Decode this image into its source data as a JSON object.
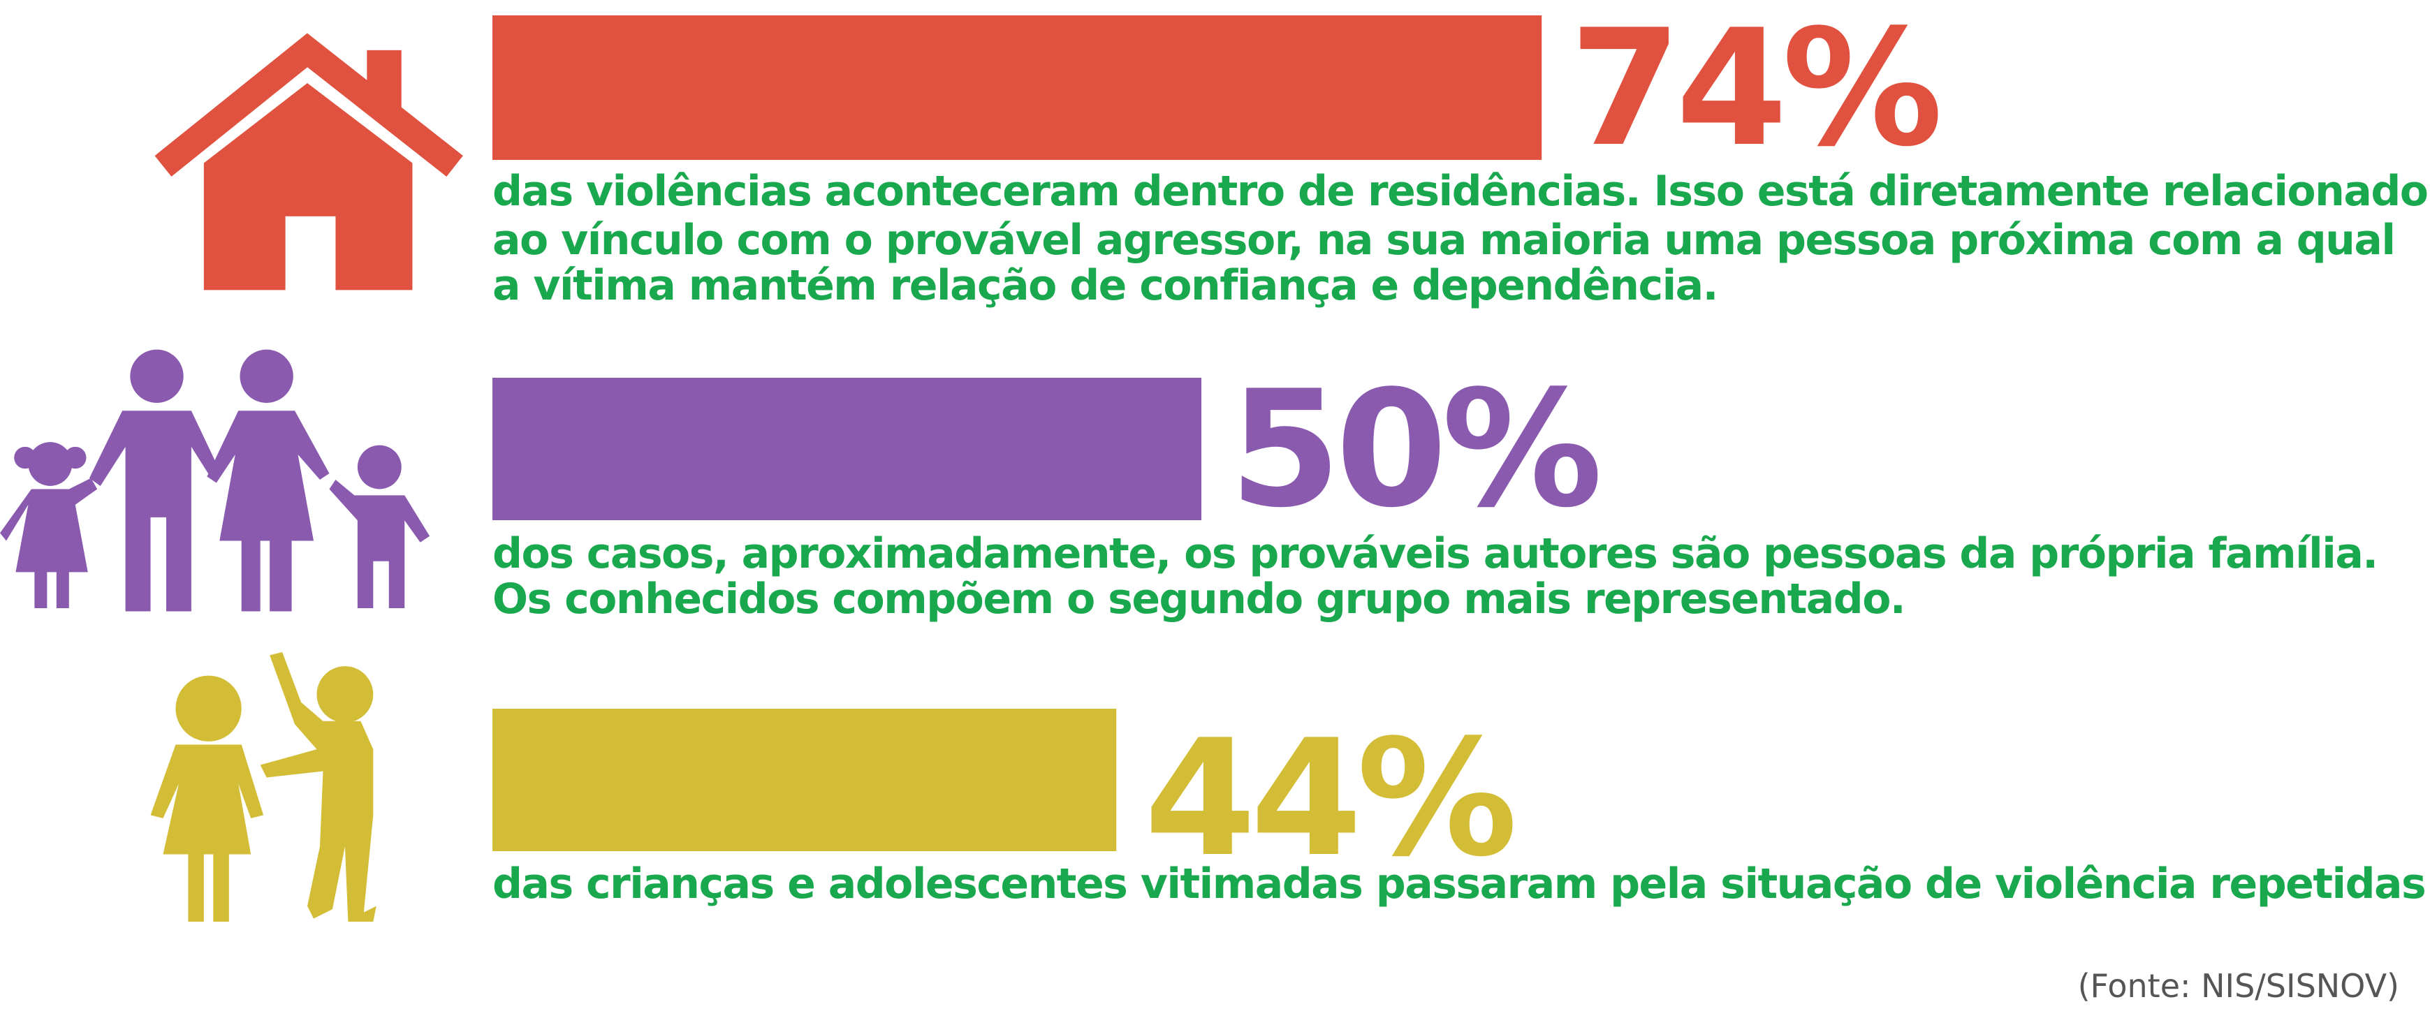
{
  "chart_data": {
    "type": "bar",
    "orientation": "horizontal",
    "values": [
      74,
      50,
      44
    ],
    "value_labels": [
      "74%",
      "50%",
      "44%"
    ],
    "colors": [
      "#e0523f",
      "#8a5aaf",
      "#d3bd37"
    ],
    "descriptions": [
      [
        "das violências aconteceram dentro de residências. Isso está diretamente relacionado",
        "ao vínculo com o provável agressor, na sua maioria uma pessoa próxima com a qual",
        "a vítima mantém relação de confiança e dependência."
      ],
      [
        "dos casos, aproximadamente, os prováveis autores são pessoas da própria família.",
        "Os conhecidos compõem o segundo grupo mais representado."
      ],
      [
        "das crianças e adolescentes vitimadas passaram pela situação de violência repetidas vezes."
      ]
    ],
    "source": "(Fonte: NIS/SISNOV)"
  }
}
